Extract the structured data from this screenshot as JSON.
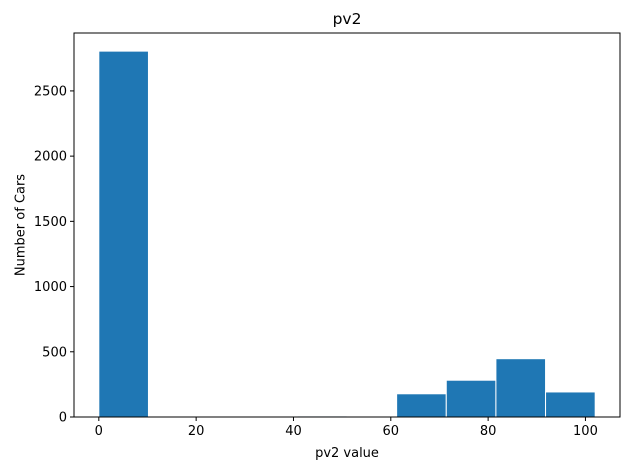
{
  "chart_data": {
    "type": "bar",
    "title": "pv2",
    "xlabel": "pv2 value",
    "ylabel": "Number of Cars",
    "xlim": [
      -5.1,
      107.1
    ],
    "ylim": [
      0,
      2944
    ],
    "xticks": [
      0,
      20,
      40,
      60,
      80,
      100
    ],
    "yticks": [
      0,
      500,
      1000,
      1500,
      2000,
      2500
    ],
    "grid": false,
    "bar_color": "#1f77b4",
    "edge_color": "#ffffff",
    "bins": [
      {
        "x0": 0,
        "x1": 10.2,
        "value": 2805
      },
      {
        "x0": 10.2,
        "x1": 20.4,
        "value": 0
      },
      {
        "x0": 20.4,
        "x1": 30.6,
        "value": 0
      },
      {
        "x0": 30.6,
        "x1": 40.8,
        "value": 0
      },
      {
        "x0": 40.8,
        "x1": 51.0,
        "value": 8
      },
      {
        "x0": 51.0,
        "x1": 61.2,
        "value": 0
      },
      {
        "x0": 61.2,
        "x1": 71.4,
        "value": 178
      },
      {
        "x0": 71.4,
        "x1": 81.6,
        "value": 282
      },
      {
        "x0": 81.6,
        "x1": 91.8,
        "value": 447
      },
      {
        "x0": 91.8,
        "x1": 102.0,
        "value": 192
      }
    ]
  }
}
